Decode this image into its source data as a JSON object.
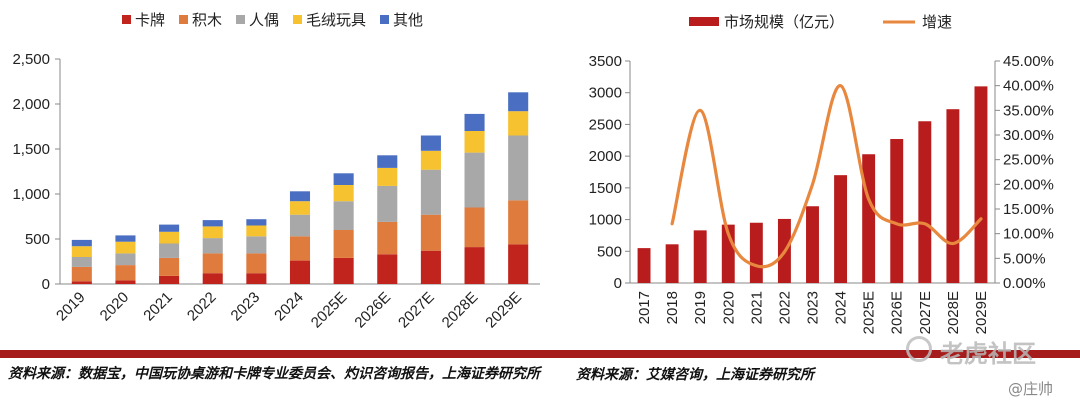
{
  "chart_data": [
    {
      "type": "stacked-bar",
      "title": "",
      "categories": [
        "2019",
        "2020",
        "2021",
        "2022",
        "2023",
        "2024",
        "2025E",
        "2026E",
        "2027E",
        "2028E",
        "2029E"
      ],
      "series": [
        {
          "name": "卡牌",
          "color": "#c0241d",
          "values": [
            30,
            40,
            90,
            120,
            120,
            260,
            290,
            330,
            370,
            410,
            440
          ]
        },
        {
          "name": "积木",
          "color": "#e07b3e",
          "values": [
            160,
            170,
            200,
            220,
            220,
            270,
            310,
            360,
            400,
            440,
            490
          ]
        },
        {
          "name": "人偶",
          "color": "#a8a8a8",
          "values": [
            110,
            130,
            160,
            170,
            190,
            240,
            320,
            400,
            500,
            610,
            720
          ]
        },
        {
          "name": "毛绒玩具",
          "color": "#f6c22f",
          "values": [
            120,
            130,
            130,
            130,
            120,
            150,
            180,
            200,
            210,
            240,
            270
          ]
        },
        {
          "name": "其他",
          "color": "#4a6fc2",
          "values": [
            70,
            70,
            80,
            70,
            70,
            110,
            130,
            140,
            170,
            190,
            210
          ]
        }
      ],
      "ylim": [
        0,
        2500
      ],
      "yticks": [
        "0",
        "500",
        "1,000",
        "1,500",
        "2,000",
        "2,500"
      ],
      "ytick_values": [
        0,
        500,
        1000,
        1500,
        2000,
        2500
      ],
      "legend": "top"
    },
    {
      "type": "bar+line",
      "title": "",
      "categories": [
        "2017",
        "2018",
        "2019",
        "2020",
        "2021",
        "2022",
        "2023",
        "2024",
        "2025E",
        "2026E",
        "2027E",
        "2028E",
        "2029E"
      ],
      "series": [
        {
          "name": "市场规模（亿元）",
          "type": "bar",
          "axis": "left",
          "color": "#b81c1c",
          "values": [
            550,
            610,
            830,
            920,
            950,
            1010,
            1210,
            1700,
            2030,
            2270,
            2550,
            2740,
            3100
          ]
        },
        {
          "name": "增速",
          "type": "line",
          "axis": "right",
          "color": "#e8873e",
          "values": [
            null,
            0.12,
            0.35,
            0.1,
            0.035,
            0.063,
            0.2,
            0.4,
            0.17,
            0.12,
            0.12,
            0.08,
            0.13
          ]
        }
      ],
      "ylim_left": [
        0,
        3500
      ],
      "yticks_left": [
        "0",
        "500",
        "1000",
        "1500",
        "2000",
        "2500",
        "3000",
        "3500"
      ],
      "ylim_right": [
        0,
        0.45
      ],
      "yticks_right": [
        "0.00%",
        "5.00%",
        "10.00%",
        "15.00%",
        "20.00%",
        "25.00%",
        "30.00%",
        "35.00%",
        "40.00%",
        "45.00%"
      ],
      "legend": "top"
    }
  ],
  "footer": {
    "left_source": "资料来源：数据宝，中国玩协桌游和卡牌专业委员会、灼识咨询报告，上海证券研究所",
    "right_source": "资料来源：艾媒咨询，上海证券研究所"
  },
  "watermark": {
    "brand": "老虎社区",
    "user": "@庄帅"
  }
}
